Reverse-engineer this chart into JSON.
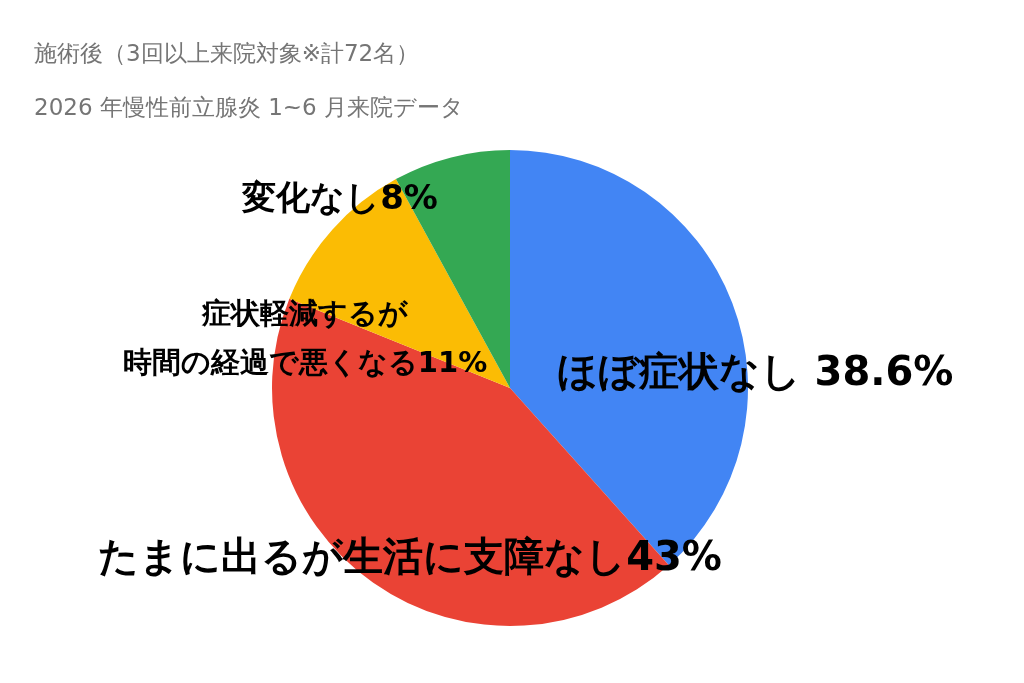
{
  "chart_data": {
    "type": "pie",
    "title": "施術後（3回以上来院対象※計72名）",
    "subtitle": "2026 年慢性前立腺炎 1~6 月来院データ",
    "categories": [
      "ほぼ症状なし",
      "たまに出るが生活に支障なし",
      "症状軽減するが時間の経過で悪くなる",
      "変化なし"
    ],
    "values": [
      38.6,
      43,
      11,
      8
    ],
    "value_labels": [
      "38.6%",
      "43%",
      "11%",
      "8%"
    ],
    "colors": [
      "#4285f4",
      "#ea4335",
      "#fbbc04",
      "#34a853"
    ],
    "legend": false
  }
}
